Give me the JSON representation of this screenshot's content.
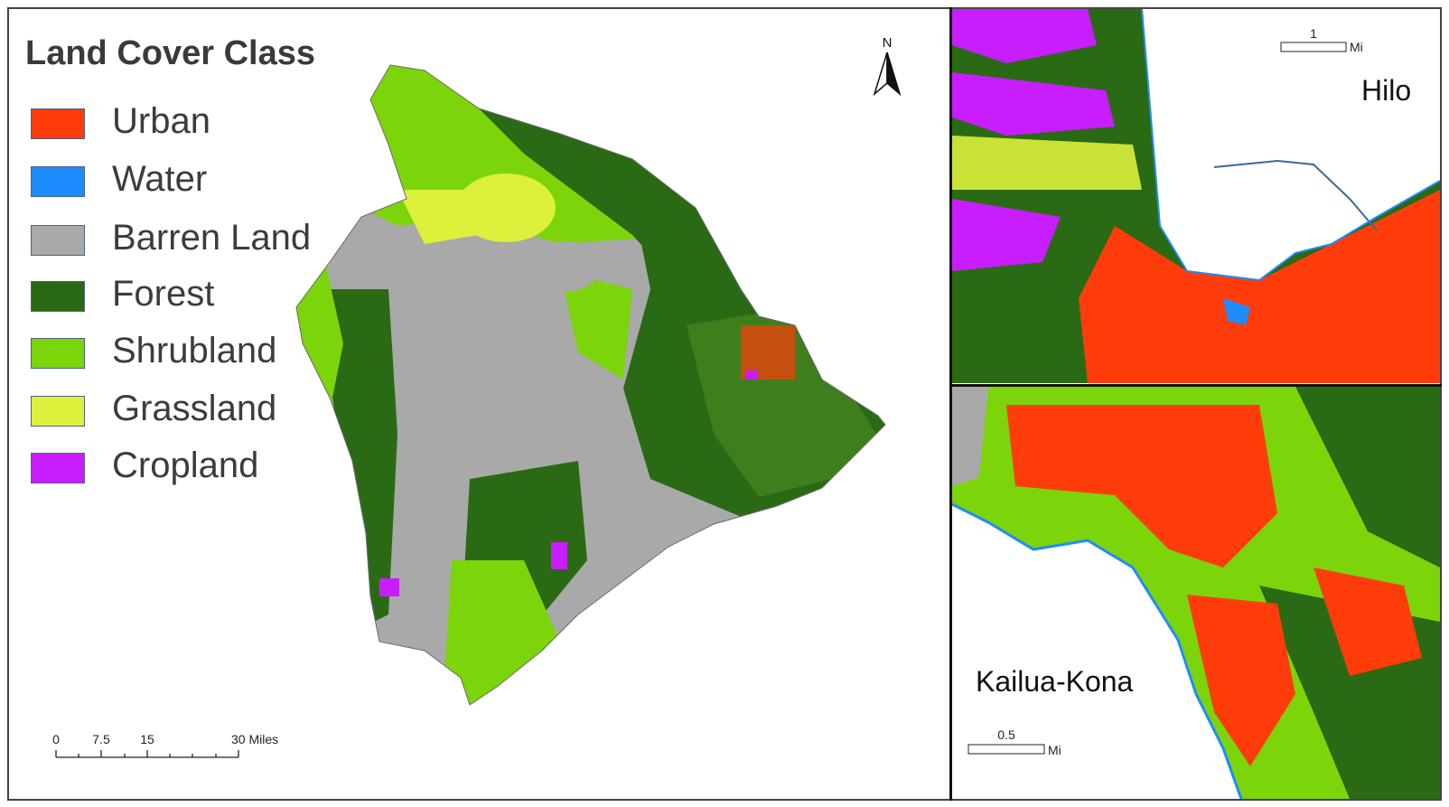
{
  "legend": {
    "title": "Land Cover Class",
    "items": [
      {
        "label": "Urban",
        "color": "#ff3c0a"
      },
      {
        "label": "Water",
        "color": "#1e8cff"
      },
      {
        "label": "Barren Land",
        "color": "#a9a9a9"
      },
      {
        "label": "Forest",
        "color": "#2a6a14"
      },
      {
        "label": "Shrubland",
        "color": "#7cd40a"
      },
      {
        "label": "Grassland",
        "color": "#dcf03c"
      },
      {
        "label": "Cropland",
        "color": "#c81eff"
      }
    ]
  },
  "main_map": {
    "north_arrow": "N",
    "scale_bar": {
      "ticks": [
        "0",
        "7.5",
        "15",
        "30 Miles"
      ]
    }
  },
  "inset_hilo": {
    "label": "Hilo",
    "scale_bar": {
      "value": "1",
      "unit": "Mi"
    }
  },
  "inset_kona": {
    "label": "Kailua-Kona",
    "scale_bar": {
      "value": "0.5",
      "unit": "Mi"
    }
  }
}
